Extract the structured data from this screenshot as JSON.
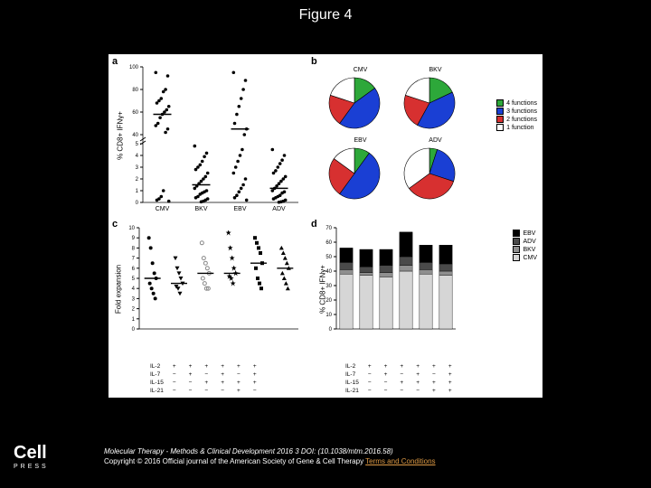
{
  "title": "Figure 4",
  "journal_line": "Molecular Therapy - Methods & Clinical Development 2016 3 DOI: (10.1038/mtm.2016.58)",
  "copyright_line": "Copyright © 2016 Official journal of the American Society of Gene & Cell Therapy",
  "terms_text": "Terms and Conditions",
  "logo": "Cell",
  "logo_sub": "PRESS",
  "panels": {
    "a": "a",
    "b": "b",
    "c": "c",
    "d": "d"
  },
  "colors": {
    "green": "#2da83a",
    "blue": "#1a3fd4",
    "red": "#d73030",
    "white": "#ffffff",
    "black": "#000000",
    "grey_d": "#4a4a4a",
    "grey_m": "#8f8f8f",
    "grey_l": "#d6d6d6"
  },
  "panelA": {
    "ylabel": "% CD8+ IFNγ+",
    "categories": [
      "CMV",
      "BKV",
      "EBV",
      "ADV"
    ],
    "yticks_upper": [
      40,
      60,
      80,
      100
    ],
    "yticks_lower": [
      0,
      1,
      2,
      3,
      4,
      5
    ],
    "break": true,
    "points": {
      "CMV": [
        95,
        92,
        80,
        78,
        72,
        70,
        68,
        65,
        62,
        60,
        58,
        55,
        50,
        48,
        45,
        42,
        1,
        0.5,
        0.3,
        0.2,
        0.1
      ],
      "BKV": [
        4.8,
        4.2,
        3.9,
        3.5,
        3.2,
        3.0,
        2.8,
        2.5,
        2.2,
        2.0,
        1.8,
        1.6,
        1.4,
        1.2,
        1.0,
        0.9,
        0.8,
        0.7,
        0.5,
        0.4,
        0.3,
        0.2,
        0.1,
        0.05
      ],
      "EBV": [
        95,
        88,
        80,
        72,
        65,
        58,
        50,
        45,
        40,
        4.5,
        4.0,
        3.5,
        3.0,
        2.5,
        2.0,
        1.5,
        1.2,
        0.9,
        0.6,
        0.4,
        0.2
      ],
      "ADV": [
        4.5,
        4.0,
        3.6,
        3.3,
        3.0,
        2.7,
        2.5,
        2.2,
        2.0,
        1.8,
        1.6,
        1.4,
        1.2,
        1.0,
        0.9,
        0.8,
        0.6,
        0.5,
        0.4,
        0.3,
        0.2,
        0.1,
        0.05,
        0.02
      ]
    },
    "medians": {
      "CMV": 58,
      "BKV": 1.5,
      "EBV": 45,
      "ADV": 1.2
    }
  },
  "panelB": {
    "legend": [
      {
        "label": "4 functions",
        "color": "#2da83a"
      },
      {
        "label": "3 functions",
        "color": "#1a3fd4"
      },
      {
        "label": "2 functions",
        "color": "#d73030"
      },
      {
        "label": "1 function",
        "color": "#ffffff"
      }
    ],
    "pies": [
      {
        "title": "CMV",
        "slices": [
          {
            "v": 15,
            "c": "#2da83a"
          },
          {
            "v": 45,
            "c": "#1a3fd4"
          },
          {
            "v": 20,
            "c": "#d73030"
          },
          {
            "v": 20,
            "c": "#ffffff"
          }
        ]
      },
      {
        "title": "BKV",
        "slices": [
          {
            "v": 18,
            "c": "#2da83a"
          },
          {
            "v": 40,
            "c": "#1a3fd4"
          },
          {
            "v": 22,
            "c": "#d73030"
          },
          {
            "v": 20,
            "c": "#ffffff"
          }
        ]
      },
      {
        "title": "EBV",
        "slices": [
          {
            "v": 10,
            "c": "#2da83a"
          },
          {
            "v": 50,
            "c": "#1a3fd4"
          },
          {
            "v": 25,
            "c": "#d73030"
          },
          {
            "v": 15,
            "c": "#ffffff"
          }
        ]
      },
      {
        "title": "ADV",
        "slices": [
          {
            "v": 5,
            "c": "#2da83a"
          },
          {
            "v": 25,
            "c": "#1a3fd4"
          },
          {
            "v": 35,
            "c": "#d73030"
          },
          {
            "v": 35,
            "c": "#ffffff"
          }
        ]
      }
    ]
  },
  "panelC": {
    "ylabel": "Fold expansion",
    "yticks": [
      0,
      1,
      2,
      3,
      4,
      5,
      6,
      7,
      8,
      9,
      10
    ],
    "groups": 6,
    "markers": [
      "circle",
      "triangle-down",
      "circle-open",
      "star",
      "square",
      "triangle-up"
    ],
    "data": [
      [
        9,
        8,
        6.5,
        5.5,
        5,
        4.5,
        4,
        3.5,
        3
      ],
      [
        7,
        6,
        5.5,
        5,
        4.5,
        4.2,
        4,
        3.5
      ],
      [
        8.5,
        7,
        6.5,
        6,
        5.5,
        5,
        4.5,
        4,
        4
      ],
      [
        9.5,
        8,
        7,
        6,
        5.5,
        5.2,
        5,
        4.5
      ],
      [
        9,
        8.5,
        8,
        7.5,
        6.5,
        6,
        5,
        4.5,
        4
      ],
      [
        8,
        7.5,
        7,
        6.5,
        6,
        5.5,
        5,
        4.5,
        4
      ]
    ],
    "medians": [
      5,
      4.5,
      5.5,
      5.5,
      6.5,
      6
    ],
    "conditions": {
      "rows": [
        "IL-2",
        "IL-7",
        "IL-15",
        "IL-21"
      ],
      "cols": [
        [
          "+",
          "−",
          "−",
          "−"
        ],
        [
          "+",
          "+",
          "−",
          "−"
        ],
        [
          "+",
          "−",
          "+",
          "−"
        ],
        [
          "+",
          "+",
          "+",
          "−"
        ],
        [
          "+",
          "−",
          "+",
          "+"
        ],
        [
          "+",
          "+",
          "+",
          "−"
        ]
      ]
    }
  },
  "panelD": {
    "ylabel": "% CD8+ IFNγ+",
    "yticks": [
      0,
      10,
      20,
      30,
      40,
      50,
      60,
      70
    ],
    "legend": [
      {
        "label": "EBV",
        "color": "#000000"
      },
      {
        "label": "ADV",
        "color": "#4a4a4a"
      },
      {
        "label": "BKV",
        "color": "#8f8f8f"
      },
      {
        "label": "CMV",
        "color": "#d6d6d6"
      }
    ],
    "bars": [
      {
        "CMV": 38,
        "BKV": 3,
        "ADV": 5,
        "EBV": 10
      },
      {
        "CMV": 37,
        "BKV": 2,
        "ADV": 4,
        "EBV": 12
      },
      {
        "CMV": 36,
        "BKV": 3,
        "ADV": 5,
        "EBV": 11
      },
      {
        "CMV": 40,
        "BKV": 4,
        "ADV": 6,
        "EBV": 17
      },
      {
        "CMV": 38,
        "BKV": 3,
        "ADV": 5,
        "EBV": 12
      },
      {
        "CMV": 37,
        "BKV": 3,
        "ADV": 5,
        "EBV": 13
      }
    ],
    "conditions": {
      "rows": [
        "IL-2",
        "IL-7",
        "IL-15",
        "IL-21"
      ],
      "cols": [
        [
          "+",
          "−",
          "−",
          "−"
        ],
        [
          "+",
          "+",
          "−",
          "−"
        ],
        [
          "+",
          "−",
          "+",
          "−"
        ],
        [
          "+",
          "+",
          "+",
          "−"
        ],
        [
          "+",
          "−",
          "+",
          "+"
        ],
        [
          "+",
          "+",
          "+",
          "+"
        ]
      ]
    }
  }
}
